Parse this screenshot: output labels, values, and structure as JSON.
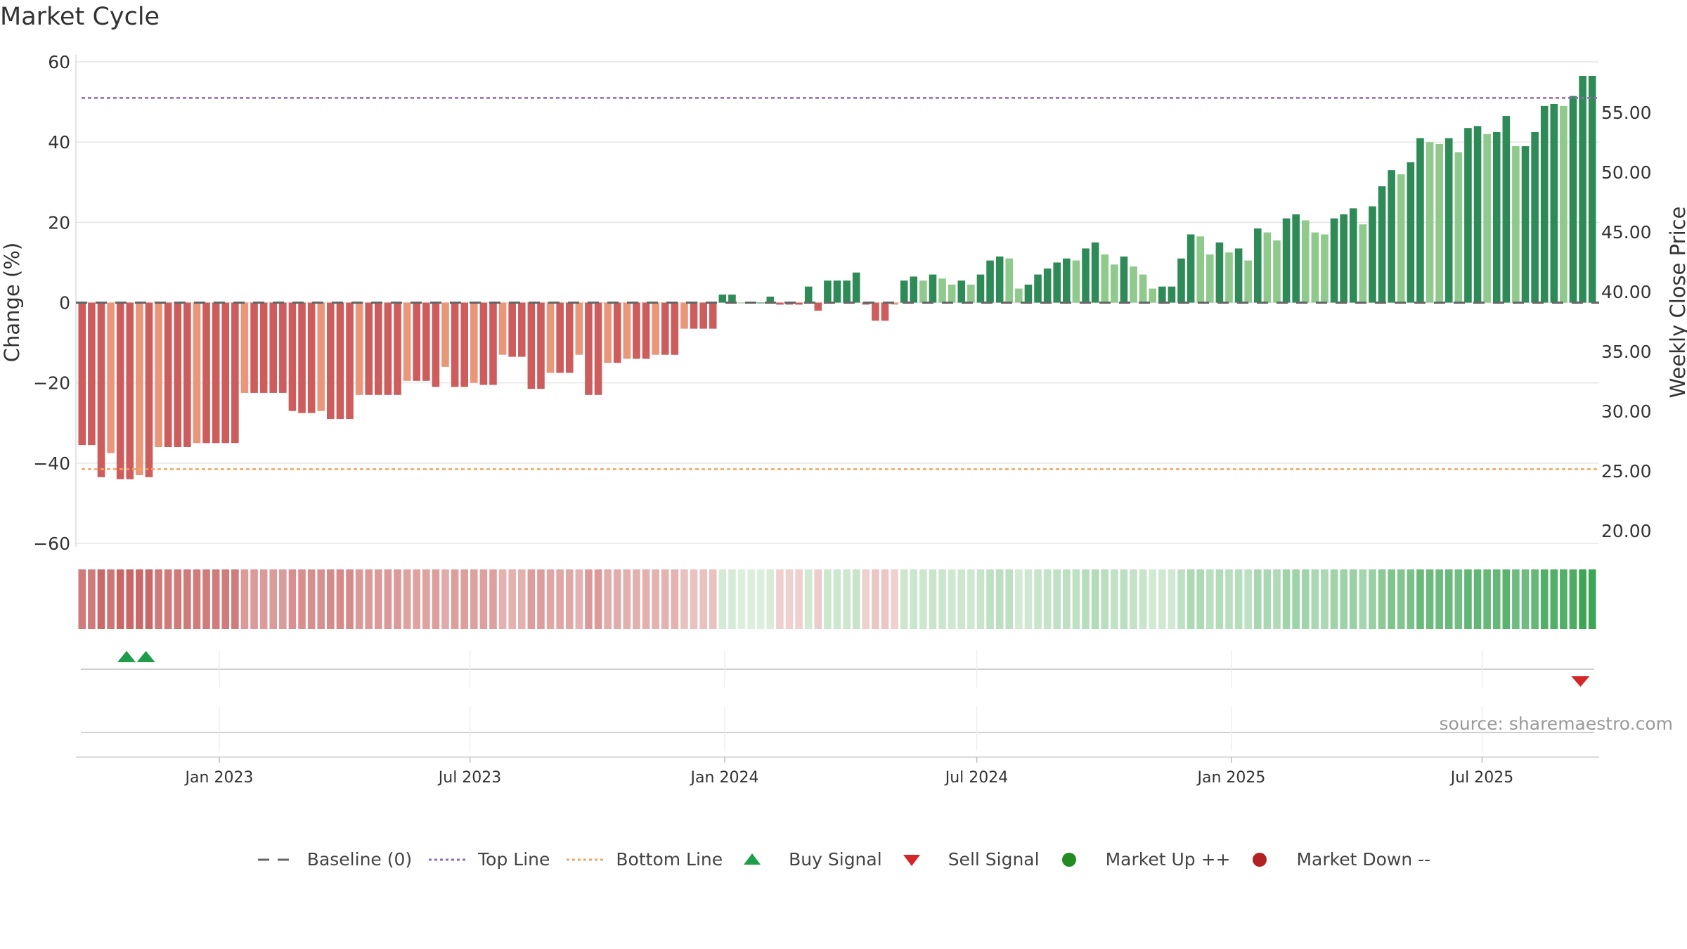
{
  "title": "Market Cycle",
  "source": "source: sharemaestro.com",
  "legend": {
    "baseline": "Baseline (0)",
    "top_line": "Top Line",
    "bottom_line": "Bottom Line",
    "buy_signal": "Buy Signal",
    "sell_signal": "Sell Signal",
    "market_up": "Market Up ++",
    "market_down": "Market Down --"
  },
  "colors": {
    "strong_up": "#2e8b57",
    "weak_up": "#8fc98c",
    "strong_down": "#cd5c5c",
    "weak_down": "#e9967a",
    "top_line": "#9467bd",
    "bottom_line": "#f4a460",
    "buy": "#1e9e4a",
    "sell": "#d62728",
    "market_up": "#228b22",
    "market_down": "#b22222"
  },
  "chart_data": {
    "type": "bar",
    "ylabel_left": "Change (%)",
    "ylabel_right": "Weekly Close Price",
    "ylim_left": [
      -60,
      60
    ],
    "yticks_left": [
      "60",
      "40",
      "20",
      "0",
      "−20",
      "−40",
      "−60"
    ],
    "yticks_right": [
      "55.00",
      "50.00",
      "45.00",
      "40.00",
      "35.00",
      "30.00",
      "25.00",
      "20.00"
    ],
    "top_line": 51,
    "bottom_line": -41.5,
    "baseline": 0,
    "x_tick_labels": [
      "Jan 2023",
      "Jul 2023",
      "Jan 2024",
      "Jul 2024",
      "Jan 2025",
      "Jul 2025"
    ],
    "start_date": "2022-10-12",
    "values": [
      -35.5,
      -35.5,
      -43.5,
      -37.5,
      -44,
      -44,
      -43,
      -43.5,
      -36,
      -36,
      -36,
      -36,
      -35,
      -35,
      -35,
      -35,
      -35,
      -22.5,
      -22.5,
      -22.5,
      -22.5,
      -22.5,
      -27,
      -27.5,
      -27.5,
      -27,
      -29,
      -29,
      -29,
      -23,
      -23,
      -23,
      -23,
      -23,
      -19.5,
      -19.5,
      -19.5,
      -21,
      -16,
      -21,
      -21,
      -20,
      -20.5,
      -20.5,
      -13,
      -13.5,
      -13.5,
      -21.5,
      -21.5,
      -17.5,
      -17.5,
      -17.5,
      -13,
      -23,
      -23,
      -15,
      -15,
      -14,
      -14,
      -14,
      -13,
      -13,
      -13,
      -6.5,
      -6.5,
      -6.5,
      -6.5,
      2,
      2,
      0,
      0,
      0,
      1.5,
      -0.5,
      -0.5,
      -0.5,
      4,
      -2,
      5.5,
      5.5,
      5.5,
      7.5,
      -0.5,
      -4.5,
      -4.5,
      -0.5,
      5.5,
      6.5,
      5.5,
      7,
      6,
      4.5,
      5.5,
      4.5,
      7,
      10.5,
      11.5,
      11,
      3.5,
      4.5,
      7,
      8.5,
      10,
      11,
      10.5,
      13.5,
      15,
      12,
      9.5,
      11.5,
      9,
      7,
      3.5,
      4,
      4,
      11,
      17,
      16.5,
      12,
      15,
      12.5,
      13.5,
      10.5,
      18.5,
      17.5,
      15.5,
      21,
      22,
      20.5,
      17.5,
      17,
      21,
      22,
      23.5,
      19.5,
      24,
      29,
      33,
      32,
      35,
      41,
      40,
      39.5,
      41,
      37.5,
      43.5,
      44,
      42,
      42.5,
      46.5,
      39,
      39,
      42.5,
      49,
      49.5,
      49,
      51.5,
      56.5,
      56.5
    ],
    "buy_signals": [
      "2022-10-26",
      "2022-11-09"
    ],
    "sell_signals": [
      "2025-09-10"
    ],
    "market_up_markers": [],
    "market_down_markers": []
  }
}
